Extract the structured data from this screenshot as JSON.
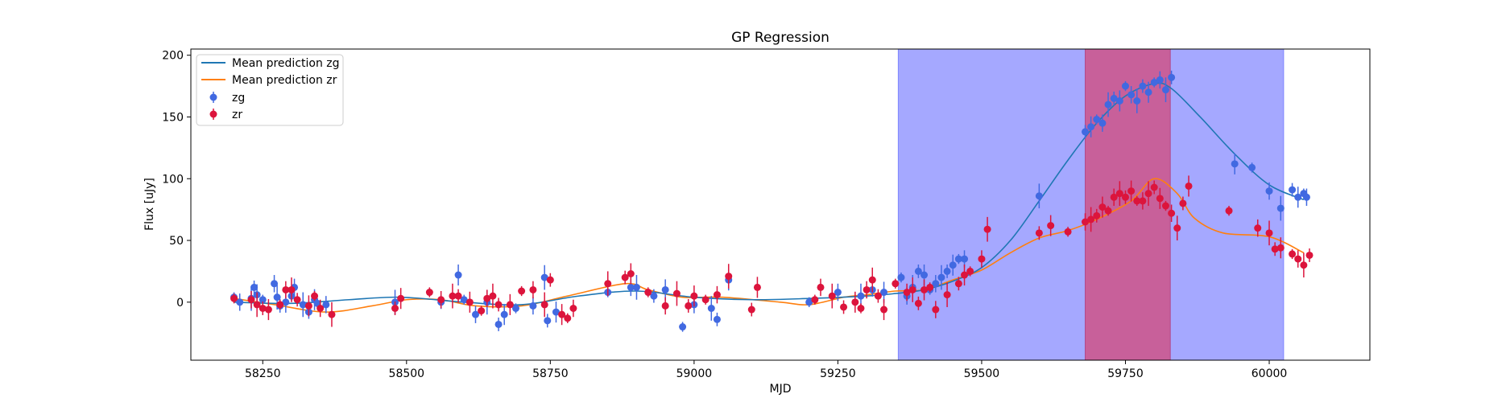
{
  "chart_data": {
    "type": "scatter",
    "title": "GP Regression",
    "xlabel": "MJD",
    "ylabel": "Flux [uJy]",
    "xlim": [
      58125,
      60175
    ],
    "ylim": [
      -47,
      205
    ],
    "xticks": [
      58250,
      58500,
      58750,
      59000,
      59250,
      59500,
      59750,
      60000
    ],
    "yticks": [
      0,
      50,
      100,
      150,
      200
    ],
    "legend_position": "top-left",
    "legend": [
      "Mean prediction zg",
      "Mean prediction zr",
      "zg",
      "zr"
    ],
    "colors": {
      "mean_zg": "#1f77b4",
      "mean_zr": "#ff7f0e",
      "zg": "#4169e1",
      "zr": "#dc143c",
      "window_outer": "#a5a8ff",
      "window_inner": "#c8609a"
    },
    "shaded_regions": [
      {
        "x0": 59355,
        "x1": 60025,
        "color": "blue"
      },
      {
        "x0": 59680,
        "x1": 59828,
        "color": "red"
      }
    ],
    "mean_prediction_zg": [
      [
        58200,
        0
      ],
      [
        58300,
        -1
      ],
      [
        58400,
        2
      ],
      [
        58490,
        4
      ],
      [
        58600,
        0
      ],
      [
        58700,
        -2
      ],
      [
        58800,
        5
      ],
      [
        58900,
        9
      ],
      [
        59000,
        4
      ],
      [
        59100,
        2
      ],
      [
        59200,
        3
      ],
      [
        59300,
        5
      ],
      [
        59350,
        7
      ],
      [
        59400,
        10
      ],
      [
        59450,
        17
      ],
      [
        59500,
        28
      ],
      [
        59550,
        50
      ],
      [
        59600,
        82
      ],
      [
        59650,
        115
      ],
      [
        59700,
        145
      ],
      [
        59750,
        167
      ],
      [
        59800,
        177
      ],
      [
        59830,
        173
      ],
      [
        59880,
        150
      ],
      [
        59940,
        120
      ],
      [
        60000,
        95
      ],
      [
        60060,
        83
      ]
    ],
    "mean_prediction_zr": [
      [
        58200,
        3
      ],
      [
        58270,
        -2
      ],
      [
        58360,
        -8
      ],
      [
        58440,
        -3
      ],
      [
        58500,
        2
      ],
      [
        58560,
        2
      ],
      [
        58620,
        -3
      ],
      [
        58700,
        -3
      ],
      [
        58780,
        5
      ],
      [
        58880,
        15
      ],
      [
        58920,
        10
      ],
      [
        58980,
        4
      ],
      [
        59050,
        4
      ],
      [
        59150,
        0
      ],
      [
        59200,
        -2
      ],
      [
        59260,
        4
      ],
      [
        59300,
        6
      ],
      [
        59350,
        9
      ],
      [
        59400,
        10
      ],
      [
        59450,
        18
      ],
      [
        59500,
        26
      ],
      [
        59550,
        40
      ],
      [
        59600,
        52
      ],
      [
        59650,
        58
      ],
      [
        59700,
        67
      ],
      [
        59760,
        82
      ],
      [
        59800,
        100
      ],
      [
        59840,
        88
      ],
      [
        59870,
        68
      ],
      [
        59920,
        56
      ],
      [
        60000,
        53
      ],
      [
        60060,
        40
      ]
    ],
    "series": [
      {
        "name": "zg",
        "points": [
          [
            58200,
            4
          ],
          [
            58210,
            0
          ],
          [
            58230,
            3
          ],
          [
            58235,
            12
          ],
          [
            58240,
            6
          ],
          [
            58250,
            2
          ],
          [
            58270,
            15
          ],
          [
            58275,
            4
          ],
          [
            58280,
            -3
          ],
          [
            58290,
            0
          ],
          [
            58300,
            5
          ],
          [
            58305,
            12
          ],
          [
            58320,
            -2
          ],
          [
            58330,
            -8
          ],
          [
            58340,
            2
          ],
          [
            58345,
            -1
          ],
          [
            58360,
            -2
          ],
          [
            58480,
            0
          ],
          [
            58560,
            0
          ],
          [
            58590,
            22
          ],
          [
            58600,
            2
          ],
          [
            58620,
            -10
          ],
          [
            58640,
            0
          ],
          [
            58660,
            -18
          ],
          [
            58670,
            -10
          ],
          [
            58690,
            -5
          ],
          [
            58720,
            -3
          ],
          [
            58740,
            20
          ],
          [
            58745,
            -15
          ],
          [
            58760,
            -8
          ],
          [
            58850,
            8
          ],
          [
            58890,
            12
          ],
          [
            58900,
            12
          ],
          [
            58930,
            5
          ],
          [
            58950,
            10
          ],
          [
            58980,
            -20
          ],
          [
            59000,
            -2
          ],
          [
            59030,
            -5
          ],
          [
            59040,
            -14
          ],
          [
            59060,
            18
          ],
          [
            59200,
            0
          ],
          [
            59250,
            8
          ],
          [
            59290,
            5
          ],
          [
            59310,
            10
          ],
          [
            59330,
            8
          ],
          [
            59360,
            20
          ],
          [
            59370,
            5
          ],
          [
            59380,
            12
          ],
          [
            59390,
            25
          ],
          [
            59400,
            22
          ],
          [
            59410,
            10
          ],
          [
            59420,
            15
          ],
          [
            59430,
            20
          ],
          [
            59440,
            25
          ],
          [
            59450,
            30
          ],
          [
            59460,
            35
          ],
          [
            59470,
            35
          ],
          [
            59600,
            86
          ],
          [
            59680,
            138
          ],
          [
            59690,
            142
          ],
          [
            59700,
            148
          ],
          [
            59710,
            145
          ],
          [
            59720,
            160
          ],
          [
            59730,
            165
          ],
          [
            59740,
            163
          ],
          [
            59750,
            175
          ],
          [
            59760,
            168
          ],
          [
            59770,
            163
          ],
          [
            59780,
            175
          ],
          [
            59790,
            170
          ],
          [
            59800,
            178
          ],
          [
            59810,
            180
          ],
          [
            59820,
            172
          ],
          [
            59830,
            182
          ],
          [
            59940,
            112
          ],
          [
            59970,
            109
          ],
          [
            60000,
            90
          ],
          [
            60020,
            76
          ],
          [
            60040,
            91
          ],
          [
            60050,
            85
          ],
          [
            60060,
            88
          ],
          [
            60065,
            85
          ]
        ]
      },
      {
        "name": "zr",
        "points": [
          [
            58200,
            3
          ],
          [
            58230,
            2
          ],
          [
            58240,
            -2
          ],
          [
            58250,
            -5
          ],
          [
            58260,
            -6
          ],
          [
            58280,
            -2
          ],
          [
            58290,
            10
          ],
          [
            58300,
            10
          ],
          [
            58310,
            2
          ],
          [
            58330,
            -3
          ],
          [
            58340,
            5
          ],
          [
            58350,
            -5
          ],
          [
            58370,
            -10
          ],
          [
            58480,
            -5
          ],
          [
            58490,
            3
          ],
          [
            58540,
            8
          ],
          [
            58560,
            2
          ],
          [
            58580,
            5
          ],
          [
            58590,
            5
          ],
          [
            58610,
            0
          ],
          [
            58630,
            -7
          ],
          [
            58640,
            3
          ],
          [
            58650,
            5
          ],
          [
            58660,
            -2
          ],
          [
            58680,
            -2
          ],
          [
            58700,
            9
          ],
          [
            58720,
            10
          ],
          [
            58740,
            -2
          ],
          [
            58750,
            18
          ],
          [
            58770,
            -10
          ],
          [
            58780,
            -13
          ],
          [
            58790,
            -5
          ],
          [
            58850,
            15
          ],
          [
            58880,
            20
          ],
          [
            58890,
            23
          ],
          [
            58920,
            8
          ],
          [
            58950,
            -3
          ],
          [
            58970,
            7
          ],
          [
            58990,
            -3
          ],
          [
            59000,
            5
          ],
          [
            59020,
            2
          ],
          [
            59040,
            6
          ],
          [
            59060,
            21
          ],
          [
            59100,
            -6
          ],
          [
            59110,
            12
          ],
          [
            59210,
            2
          ],
          [
            59220,
            12
          ],
          [
            59240,
            5
          ],
          [
            59260,
            -4
          ],
          [
            59280,
            0
          ],
          [
            59290,
            -5
          ],
          [
            59300,
            10
          ],
          [
            59310,
            18
          ],
          [
            59320,
            5
          ],
          [
            59330,
            -6
          ],
          [
            59350,
            15
          ],
          [
            59370,
            8
          ],
          [
            59380,
            10
          ],
          [
            59390,
            -1
          ],
          [
            59400,
            10
          ],
          [
            59410,
            12
          ],
          [
            59420,
            -6
          ],
          [
            59440,
            6
          ],
          [
            59460,
            15
          ],
          [
            59470,
            22
          ],
          [
            59480,
            25
          ],
          [
            59500,
            35
          ],
          [
            59510,
            59
          ],
          [
            59600,
            56
          ],
          [
            59620,
            62
          ],
          [
            59650,
            57
          ],
          [
            59680,
            65
          ],
          [
            59690,
            67
          ],
          [
            59700,
            70
          ],
          [
            59710,
            77
          ],
          [
            59720,
            74
          ],
          [
            59730,
            85
          ],
          [
            59740,
            88
          ],
          [
            59750,
            85
          ],
          [
            59760,
            90
          ],
          [
            59770,
            82
          ],
          [
            59780,
            82
          ],
          [
            59790,
            88
          ],
          [
            59800,
            93
          ],
          [
            59810,
            84
          ],
          [
            59820,
            78
          ],
          [
            59830,
            72
          ],
          [
            59840,
            60
          ],
          [
            59850,
            80
          ],
          [
            59860,
            94
          ],
          [
            59930,
            74
          ],
          [
            59980,
            60
          ],
          [
            60000,
            56
          ],
          [
            60010,
            43
          ],
          [
            60020,
            44
          ],
          [
            60040,
            39
          ],
          [
            60050,
            35
          ],
          [
            60060,
            30
          ],
          [
            60070,
            38
          ]
        ]
      }
    ]
  }
}
